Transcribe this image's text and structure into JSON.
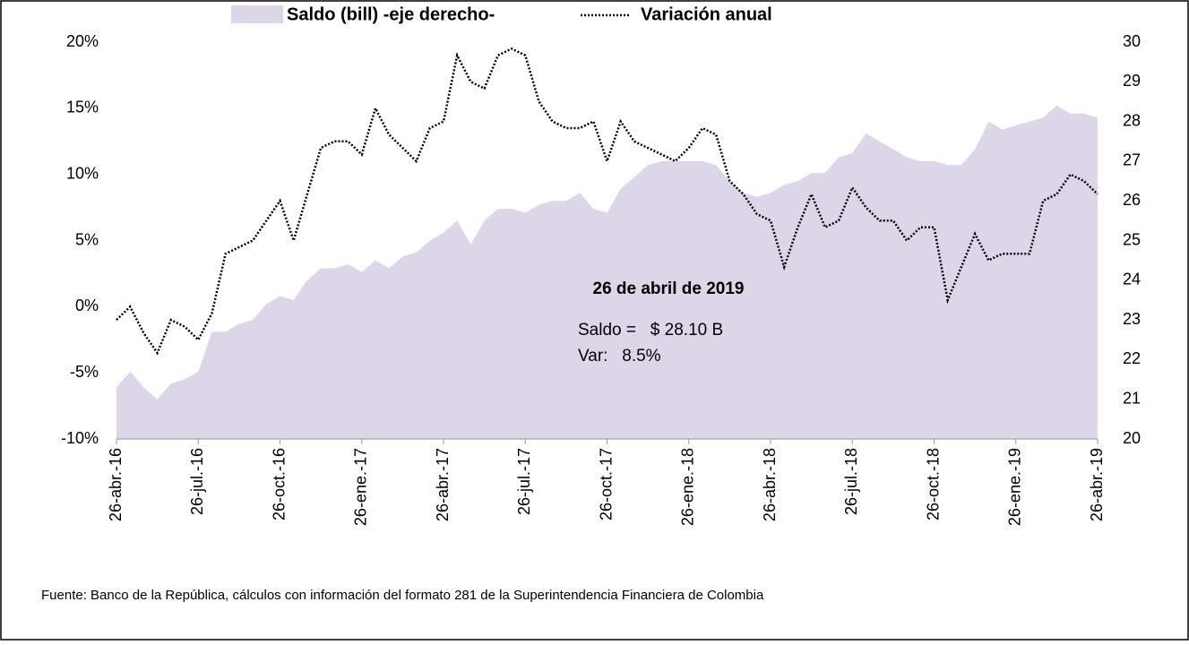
{
  "chart_data": {
    "type": "line",
    "legend_position": "top",
    "categories": [
      "26-abr.-16",
      null,
      null,
      null,
      null,
      null,
      "26-jul.-16",
      null,
      null,
      null,
      null,
      null,
      "26-oct.-16",
      null,
      null,
      null,
      null,
      null,
      "26-ene.-17",
      null,
      null,
      null,
      null,
      null,
      "26-abr.-17",
      null,
      null,
      null,
      null,
      null,
      "26-jul.-17",
      null,
      null,
      null,
      null,
      null,
      "26-oct.-17",
      null,
      null,
      null,
      null,
      null,
      "26-ene.-18",
      null,
      null,
      null,
      null,
      null,
      "26-abr.-18",
      null,
      null,
      null,
      null,
      null,
      "26-jul.-18",
      null,
      null,
      null,
      null,
      null,
      "26-oct.-18",
      null,
      null,
      null,
      null,
      null,
      "26-ene.-19",
      null,
      null,
      null,
      null,
      null,
      "26-abr.-19"
    ],
    "series": [
      {
        "name": "Saldo (bill) -eje derecho-",
        "type": "area",
        "axis": "y2",
        "color": "#dcd6e8",
        "values": [
          21.3,
          21.7,
          21.3,
          21,
          21.4,
          21.5,
          21.7,
          22.7,
          22.7,
          22.9,
          23,
          23.4,
          23.6,
          23.5,
          24,
          24.3,
          24.3,
          24.4,
          24.2,
          24.5,
          24.3,
          24.6,
          24.7,
          25,
          25.2,
          25.5,
          24.9,
          25.5,
          25.8,
          25.8,
          25.7,
          25.9,
          26,
          26,
          26.2,
          25.8,
          25.7,
          26.3,
          26.6,
          26.9,
          27,
          27,
          27,
          27,
          26.9,
          26.5,
          26.2,
          26.1,
          26.2,
          26.4,
          26.5,
          26.7,
          26.7,
          27.1,
          27.2,
          27.7,
          27.5,
          27.3,
          27.1,
          27,
          27,
          26.9,
          26.9,
          27.3,
          28,
          27.8,
          27.9,
          28,
          28.1,
          28.4,
          28.2,
          28.2,
          28.1
        ]
      },
      {
        "name": "Variación anual",
        "type": "line",
        "axis": "y",
        "color": "#000000",
        "values": [
          -1,
          0,
          -2,
          -3.5,
          -1,
          -1.5,
          -2.5,
          -0.5,
          4,
          4.5,
          5,
          6.5,
          8,
          5,
          8.5,
          12,
          12.5,
          12.5,
          11.5,
          15,
          13,
          12,
          11,
          13.5,
          14,
          19,
          17,
          16.5,
          19,
          19.5,
          19,
          15.5,
          14,
          13.5,
          13.5,
          14,
          11,
          14,
          12.5,
          12,
          11.5,
          11,
          12,
          13.5,
          13,
          9.5,
          8.5,
          7,
          6.5,
          3,
          6,
          8.5,
          6,
          6.5,
          9,
          7.5,
          6.5,
          6.5,
          5,
          6,
          6,
          0.5,
          3,
          5.5,
          3.5,
          4,
          4,
          4,
          8,
          8.5,
          10,
          9.5,
          8.5
        ]
      }
    ],
    "ylim": [
      -10,
      20
    ],
    "yticks": [
      {
        "value": -10,
        "label": "-10%"
      },
      {
        "value": -5,
        "label": "-5%"
      },
      {
        "value": 0,
        "label": "0%"
      },
      {
        "value": 5,
        "label": "5%"
      },
      {
        "value": 10,
        "label": "10%"
      },
      {
        "value": 15,
        "label": "15%"
      },
      {
        "value": 20,
        "label": "20%"
      }
    ],
    "y2lim": [
      20,
      30
    ],
    "y2ticks": [
      20,
      21,
      22,
      23,
      24,
      25,
      26,
      27,
      28,
      29,
      30
    ],
    "annotation": {
      "title": "26 de abril de 2019",
      "line1": "Saldo =   $ 28.10 B",
      "line2": "Var:   8.5%"
    },
    "source": "Fuente:  Banco de la República, cálculos con información del formato 281 de  la Superintendencia Financiera de Colombia"
  }
}
